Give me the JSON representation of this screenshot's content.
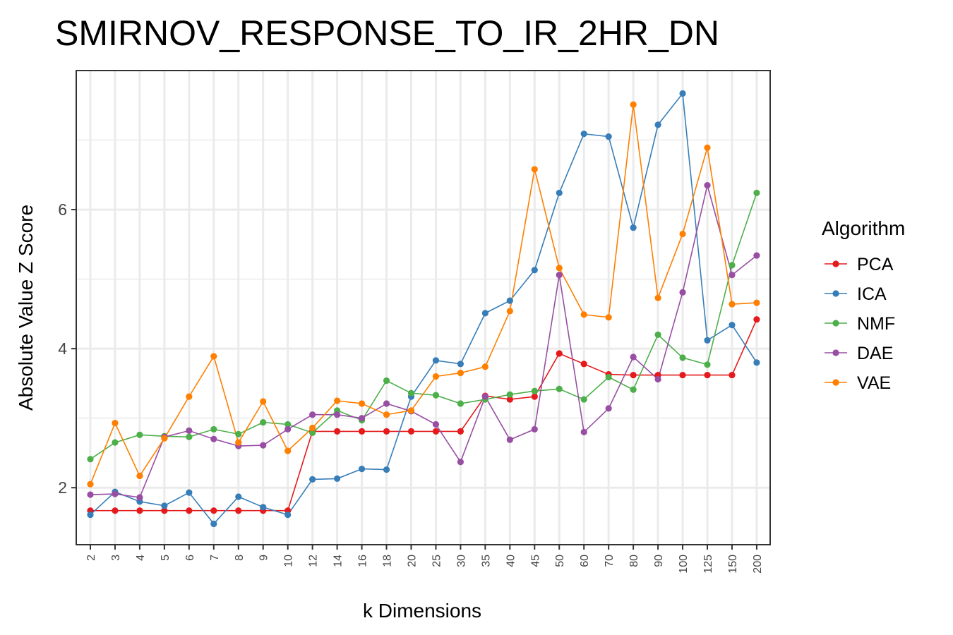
{
  "chart_data": {
    "type": "line",
    "title": "SMIRNOV_RESPONSE_TO_IR_2HR_DN",
    "xlabel": "k Dimensions",
    "ylabel": "Absolute Value Z Score",
    "categories": [
      "2",
      "3",
      "4",
      "5",
      "6",
      "7",
      "8",
      "9",
      "10",
      "12",
      "14",
      "16",
      "18",
      "20",
      "25",
      "30",
      "35",
      "40",
      "45",
      "50",
      "60",
      "70",
      "80",
      "90",
      "100",
      "125",
      "150",
      "200"
    ],
    "ylim": [
      1.18,
      8.0
    ],
    "yticks": [
      2,
      4,
      6
    ],
    "grid": true,
    "legend": {
      "title": "Algorithm",
      "position": "right"
    },
    "series": [
      {
        "name": "PCA",
        "color": "#E41A1C",
        "values": [
          1.67,
          1.67,
          1.67,
          1.67,
          1.67,
          1.67,
          1.67,
          1.67,
          1.67,
          2.81,
          2.81,
          2.81,
          2.81,
          2.81,
          2.81,
          2.81,
          3.32,
          3.27,
          3.31,
          3.93,
          3.78,
          3.63,
          3.62,
          3.62,
          3.62,
          3.62,
          3.62,
          4.42
        ]
      },
      {
        "name": "ICA",
        "color": "#377EB8",
        "values": [
          1.61,
          1.94,
          1.8,
          1.74,
          1.93,
          1.48,
          1.87,
          1.72,
          1.61,
          2.12,
          2.13,
          2.27,
          2.26,
          3.31,
          3.83,
          3.78,
          4.51,
          4.69,
          5.13,
          6.24,
          7.09,
          7.05,
          5.74,
          7.22,
          7.67,
          4.12,
          4.34,
          3.8
        ]
      },
      {
        "name": "NMF",
        "color": "#4DAF4A",
        "values": [
          2.41,
          2.65,
          2.76,
          2.74,
          2.73,
          2.84,
          2.77,
          2.94,
          2.91,
          2.79,
          3.11,
          2.97,
          3.54,
          3.36,
          3.33,
          3.21,
          3.27,
          3.34,
          3.39,
          3.42,
          3.27,
          3.59,
          3.41,
          4.2,
          3.87,
          3.77,
          5.2,
          6.24
        ]
      },
      {
        "name": "DAE",
        "color": "#984EA3",
        "values": [
          1.9,
          1.91,
          1.86,
          2.73,
          2.82,
          2.7,
          2.6,
          2.61,
          2.84,
          3.05,
          3.05,
          3.0,
          3.21,
          3.1,
          2.91,
          2.37,
          3.31,
          2.69,
          2.84,
          5.06,
          2.8,
          3.14,
          3.88,
          3.56,
          4.81,
          6.35,
          5.06,
          5.34
        ]
      },
      {
        "name": "VAE",
        "color": "#FF7F00",
        "values": [
          2.05,
          2.93,
          2.17,
          2.71,
          3.31,
          3.89,
          2.65,
          3.24,
          2.53,
          2.86,
          3.25,
          3.21,
          3.05,
          3.11,
          3.6,
          3.65,
          3.74,
          4.54,
          6.58,
          5.16,
          4.49,
          4.45,
          7.51,
          4.73,
          5.65,
          6.89,
          4.64,
          4.66
        ]
      }
    ]
  }
}
